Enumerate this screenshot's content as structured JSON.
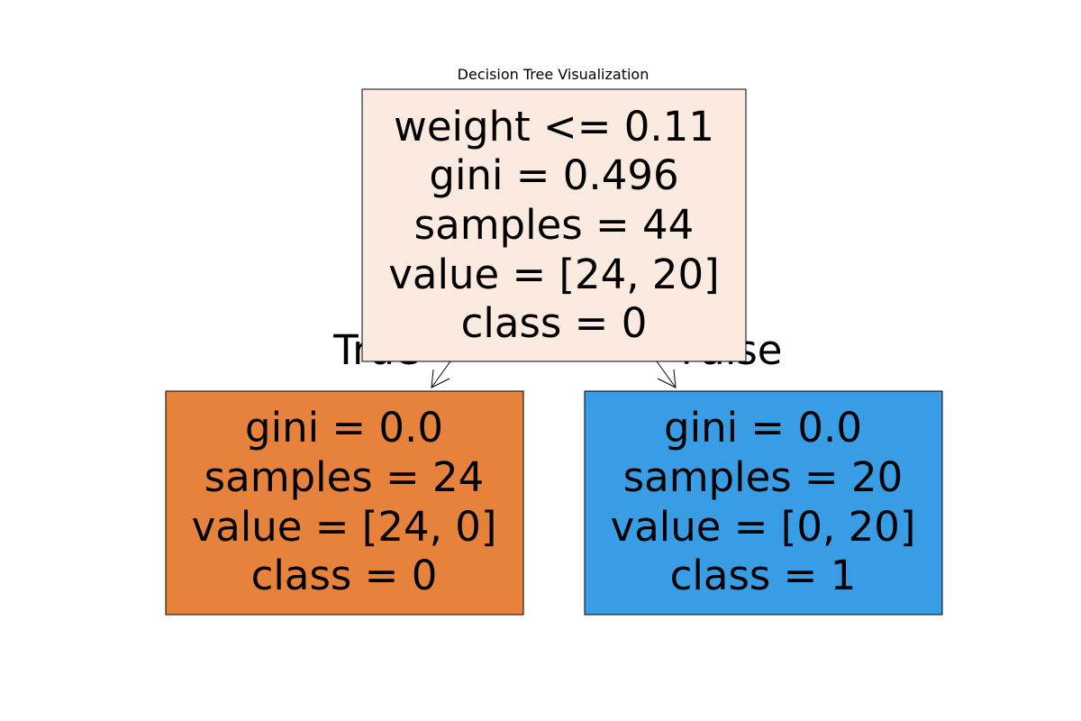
{
  "title": "Decision Tree Visualization",
  "tree": {
    "root": {
      "lines": [
        "weight <= 0.11",
        "gini = 0.496",
        "samples = 44",
        "value = [24, 20]",
        "class = 0"
      ],
      "fill": "#fbeadf"
    },
    "left": {
      "lines": [
        "gini = 0.0",
        "samples = 24",
        "value = [24, 0]",
        "class = 0"
      ],
      "fill": "#e6823b"
    },
    "right": {
      "lines": [
        "gini = 0.0",
        "samples = 20",
        "value = [0, 20]",
        "class = 1"
      ],
      "fill": "#399de5"
    },
    "edge_labels": {
      "left": "True",
      "right": "False"
    }
  }
}
